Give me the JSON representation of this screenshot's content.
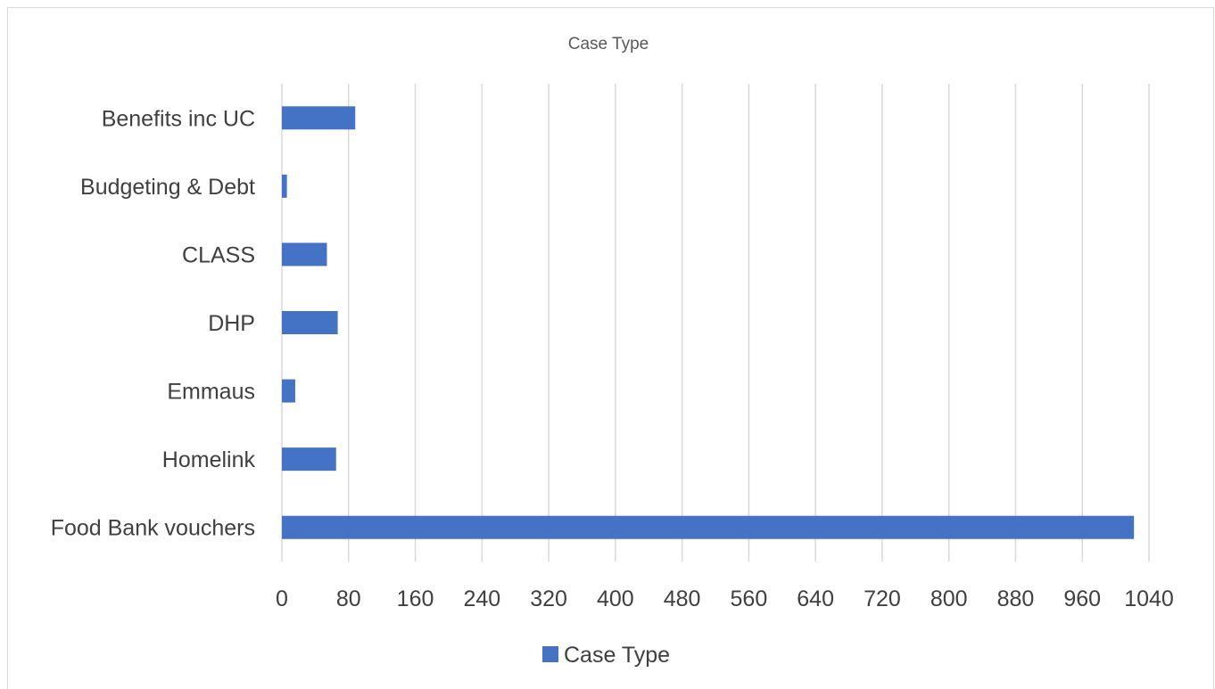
{
  "chart_data": {
    "type": "bar",
    "orientation": "horizontal",
    "title": "Case Type",
    "xlabel": "",
    "ylabel": "",
    "categories": [
      "Benefits inc UC",
      "Budgeting & Debt",
      "CLASS",
      "DHP",
      "Emmaus",
      "Homelink",
      "Food Bank vouchers"
    ],
    "series": [
      {
        "name": "Case Type",
        "values": [
          88,
          6,
          54,
          67,
          16,
          65,
          1022
        ],
        "color": "#4472c4"
      }
    ],
    "xlim": [
      0,
      1040
    ],
    "ticks": [
      "0",
      "80",
      "160",
      "240",
      "320",
      "400",
      "480",
      "560",
      "640",
      "720",
      "800",
      "880",
      "960",
      "1040"
    ],
    "grid": true,
    "legend_position": "bottom",
    "legend": [
      "Case Type"
    ]
  }
}
